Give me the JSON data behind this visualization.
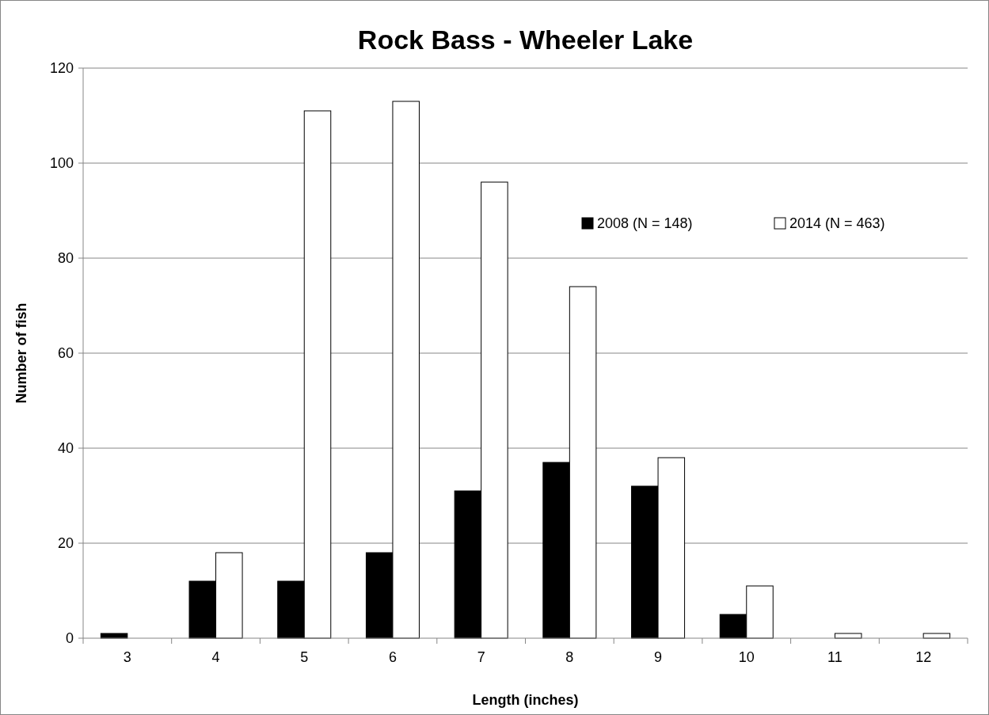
{
  "chart_data": {
    "type": "bar",
    "title": "Rock Bass - Wheeler Lake",
    "xlabel": "Length (inches)",
    "ylabel": "Number of fish",
    "categories": [
      "3",
      "4",
      "5",
      "6",
      "7",
      "8",
      "9",
      "10",
      "11",
      "12"
    ],
    "series": [
      {
        "name": "2008 (N = 148)",
        "color": "#000000",
        "values": [
          1,
          12,
          12,
          18,
          31,
          37,
          32,
          5,
          0,
          0
        ]
      },
      {
        "name": "2014 (N = 463)",
        "color": "#ffffff",
        "values": [
          0,
          18,
          111,
          113,
          96,
          74,
          38,
          11,
          1,
          1
        ]
      }
    ],
    "ylim": [
      0,
      120
    ],
    "yticks": [
      0,
      20,
      40,
      60,
      80,
      100,
      120
    ],
    "grid": "y",
    "legend": "top right"
  }
}
